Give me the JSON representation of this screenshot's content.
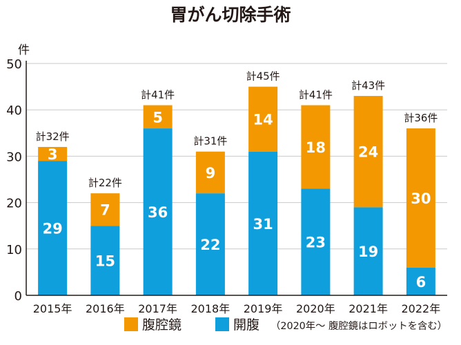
{
  "chart_data": {
    "type": "bar",
    "stacked": true,
    "title": "胃がん切除手術",
    "ylabel": "件",
    "ylim": [
      0,
      50
    ],
    "yticks": [
      0,
      10,
      20,
      30,
      40,
      50
    ],
    "grid": true,
    "categories": [
      "2015年",
      "2016年",
      "2017年",
      "2018年",
      "2019年",
      "2020年",
      "2021年",
      "2022年"
    ],
    "series": [
      {
        "name": "開腹",
        "values": [
          29,
          15,
          36,
          22,
          31,
          23,
          19,
          6
        ]
      },
      {
        "name": "腹腔鏡",
        "values": [
          3,
          7,
          5,
          9,
          14,
          18,
          24,
          30
        ]
      }
    ],
    "totals": [
      "計32件",
      "計22件",
      "計41件",
      "計31件",
      "計45件",
      "計41件",
      "計43件",
      "計36件"
    ],
    "legend": {
      "placement": "bottom",
      "note": "（2020年～ 腹腔鏡はロボットを含む）"
    },
    "colors": {
      "開腹": "#0e9fdc",
      "腹腔鏡": "#f39800",
      "grid": "#c9c9c9",
      "axis": "#231815"
    }
  }
}
